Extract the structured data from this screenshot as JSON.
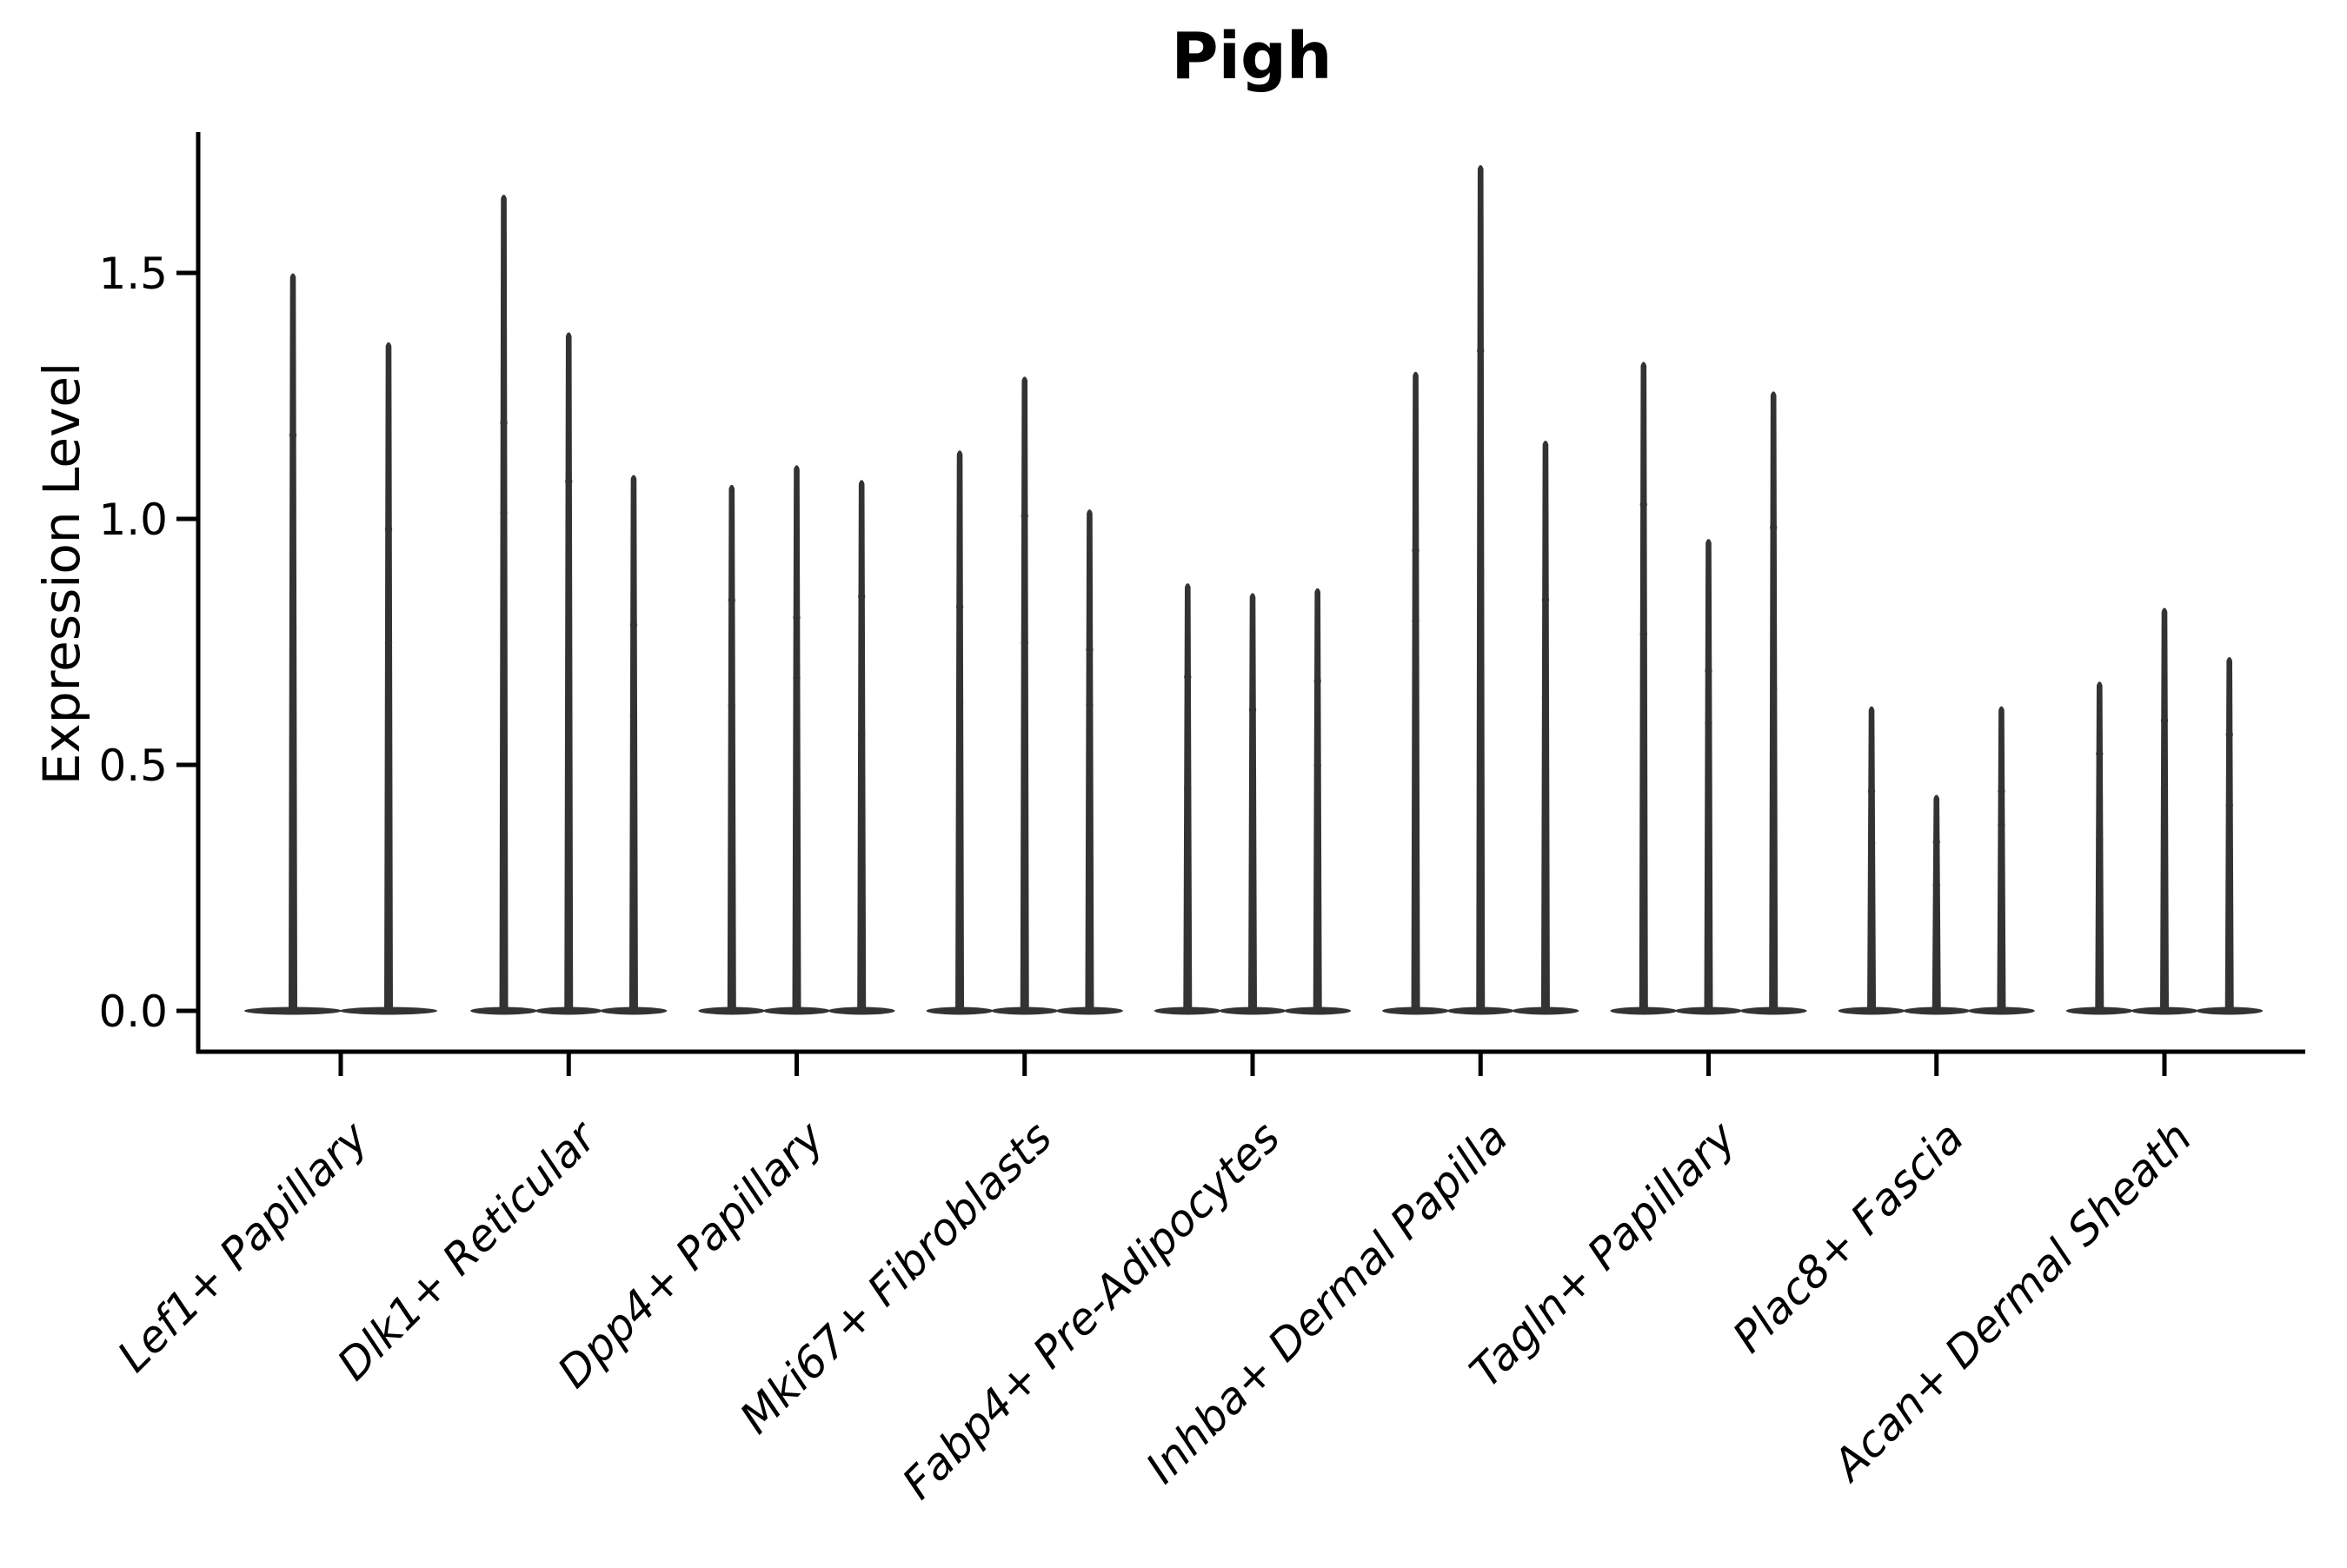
{
  "chart_data": {
    "type": "violin",
    "title": "Pigh",
    "xlabel": "",
    "ylabel": "Expression Level",
    "ylim": [
      -0.08,
      1.79
    ],
    "yticks": [
      0.0,
      0.5,
      1.0,
      1.5
    ],
    "ytick_labels": [
      "0.0",
      "0.5",
      "1.0",
      "1.5"
    ],
    "grid": false,
    "legend_position": "none",
    "xtick_label_rotation_deg": 45,
    "xtick_label_style": "italic",
    "categories": [
      "Lef1+ Papillary",
      "Dlk1+ Reticular",
      "Dpp4+ Papillary",
      "Mki67+ Fibroblasts",
      "Fabp4+ Pre-Adipocytes",
      "Inhba+ Dermal Papilla",
      "Tagln+ Papillary",
      "Plac8+ Fascia",
      "Acan+ Dermal Sheath"
    ],
    "groups": [
      {
        "label": "Lef1+ Papillary",
        "violin_max_values": [
          1.5,
          1.36
        ]
      },
      {
        "label": "Dlk1+ Reticular",
        "violin_max_values": [
          1.66,
          1.38,
          1.09
        ]
      },
      {
        "label": "Dpp4+ Papillary",
        "violin_max_values": [
          1.07,
          1.11,
          1.08
        ]
      },
      {
        "label": "Mki67+ Fibroblasts",
        "violin_max_values": [
          1.14,
          1.29,
          1.02
        ]
      },
      {
        "label": "Fabp4+ Pre-Adipocytes",
        "violin_max_values": [
          0.87,
          0.85,
          0.86
        ]
      },
      {
        "label": "Inhba+ Dermal Papilla",
        "violin_max_values": [
          1.3,
          1.72,
          1.16
        ]
      },
      {
        "label": "Tagln+ Papillary",
        "violin_max_values": [
          1.32,
          0.96,
          1.26
        ]
      },
      {
        "label": "Plac8+ Fascia",
        "violin_max_values": [
          0.62,
          0.44,
          0.62
        ]
      },
      {
        "label": "Acan+ Dermal Sheath",
        "violin_max_values": [
          0.67,
          0.82,
          0.72
        ]
      }
    ],
    "violin_baseline_value": 0.0,
    "colors": {
      "violin": "#333333",
      "axis": "#000000",
      "text": "#000000",
      "background": "#ffffff"
    }
  }
}
